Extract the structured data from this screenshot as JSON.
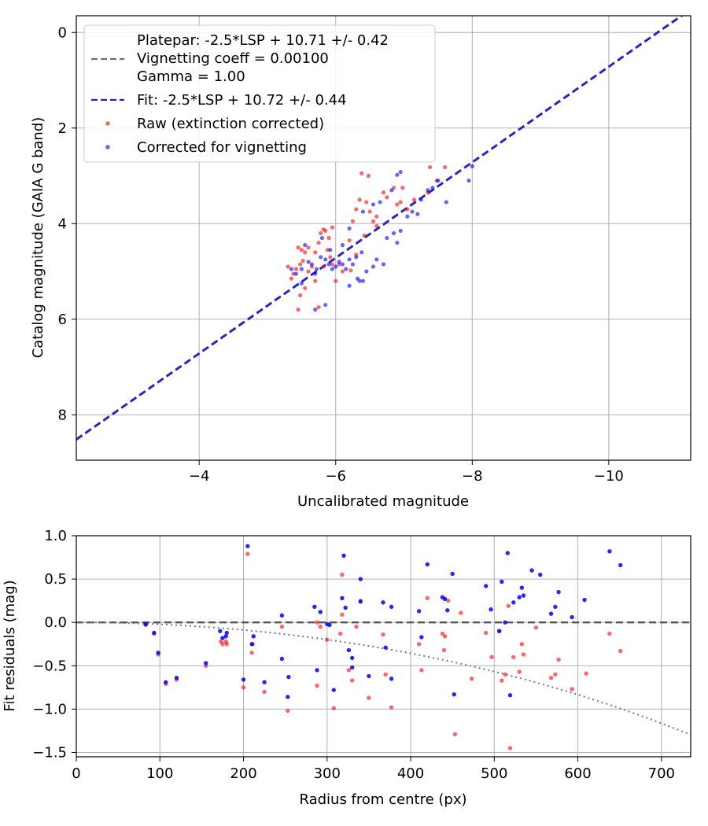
{
  "chart_data": [
    {
      "type": "scatter",
      "xlabel": "Uncalibrated magnitude",
      "ylabel": "Catalog magnitude (GAIA G band)",
      "xlim": [
        -2.2,
        -11.2
      ],
      "ylim": [
        -0.35,
        8.95
      ],
      "x_inverted": true,
      "y_inverted": true,
      "xticks": [
        -4,
        -6,
        -8,
        -10
      ],
      "xtick_labels": [
        "−4",
        "−6",
        "−8",
        "−10"
      ],
      "yticks": [
        0,
        2,
        4,
        6,
        8
      ],
      "ytick_labels": [
        "0",
        "2",
        "4",
        "6",
        "8"
      ],
      "grid": true,
      "legend_position": "top-left",
      "legend": {
        "platepar_label": "Platepar: -2.5*LSP + 10.71 +/- 0.42",
        "vignetting_label": "Vignetting coeff = 0.00100",
        "gamma_label": "Gamma = 1.00",
        "fit_label": "Fit: -2.5*LSP + 10.72 +/- 0.44",
        "raw_label": "Raw (extinction corrected)",
        "corrected_label": "Corrected for vignetting"
      },
      "colors": {
        "raw": "#ff0000",
        "corrected": "#0000ff",
        "fit": "#2222cc",
        "platepar": "#707070"
      },
      "fit_line": {
        "slope": 1.0,
        "intercept": 10.72
      },
      "platepar_line": {
        "slope": 1.0,
        "intercept": 10.71
      },
      "series": [
        {
          "key": "raw",
          "points": [
            [
              -5.45,
              4.5
            ],
            [
              -5.5,
              4.55
            ],
            [
              -5.55,
              4.6
            ],
            [
              -5.6,
              4.5
            ],
            [
              -5.52,
              4.78
            ],
            [
              -5.48,
              4.85
            ],
            [
              -5.42,
              4.95
            ],
            [
              -5.38,
              5.05
            ],
            [
              -5.6,
              5.0
            ],
            [
              -5.65,
              4.9
            ],
            [
              -5.7,
              4.6
            ],
            [
              -5.75,
              4.4
            ],
            [
              -5.78,
              4.2
            ],
            [
              -5.85,
              4.15
            ],
            [
              -5.9,
              4.3
            ],
            [
              -5.88,
              4.55
            ],
            [
              -5.92,
              4.7
            ],
            [
              -5.82,
              4.9
            ],
            [
              -5.95,
              4.85
            ],
            [
              -6.0,
              5.2
            ],
            [
              -5.7,
              5.2
            ],
            [
              -5.55,
              5.35
            ],
            [
              -5.48,
              5.5
            ],
            [
              -5.45,
              5.8
            ],
            [
              -5.75,
              5.75
            ],
            [
              -5.82,
              4.12
            ],
            [
              -5.95,
              4.08
            ],
            [
              -5.3,
              4.9
            ],
            [
              -5.35,
              5.15
            ],
            [
              -6.05,
              4.85
            ],
            [
              -6.1,
              5.0
            ],
            [
              -6.2,
              4.35
            ],
            [
              -6.25,
              3.95
            ],
            [
              -6.3,
              3.7
            ],
            [
              -6.35,
              3.5
            ],
            [
              -6.45,
              3.55
            ],
            [
              -6.5,
              3.75
            ],
            [
              -6.55,
              3.95
            ],
            [
              -6.6,
              4.05
            ],
            [
              -6.38,
              2.95
            ],
            [
              -6.48,
              3.0
            ],
            [
              -6.3,
              4.65
            ],
            [
              -6.42,
              4.25
            ],
            [
              -6.6,
              3.85
            ],
            [
              -6.7,
              3.35
            ],
            [
              -6.75,
              3.45
            ],
            [
              -6.85,
              3.25
            ],
            [
              -6.9,
              3.6
            ],
            [
              -6.95,
              3.55
            ],
            [
              -6.98,
              3.25
            ],
            [
              -7.05,
              3.7
            ],
            [
              -7.15,
              3.5
            ],
            [
              -7.35,
              3.35
            ],
            [
              -7.38,
              2.82
            ],
            [
              -7.48,
              3.1
            ],
            [
              -7.6,
              2.82
            ],
            [
              -6.22,
              4.98
            ]
          ]
        },
        {
          "key": "corrected",
          "points": [
            [
              -5.35,
              4.95
            ],
            [
              -5.42,
              5.05
            ],
            [
              -5.5,
              4.95
            ],
            [
              -5.6,
              4.8
            ],
            [
              -5.65,
              4.85
            ],
            [
              -5.72,
              4.95
            ],
            [
              -5.7,
              5.05
            ],
            [
              -5.78,
              4.7
            ],
            [
              -5.85,
              4.75
            ],
            [
              -5.9,
              4.85
            ],
            [
              -5.95,
              4.95
            ],
            [
              -6.0,
              4.9
            ],
            [
              -6.05,
              4.8
            ],
            [
              -6.1,
              4.85
            ],
            [
              -6.15,
              4.95
            ],
            [
              -6.2,
              4.75
            ],
            [
              -6.25,
              4.85
            ],
            [
              -6.3,
              4.7
            ],
            [
              -6.38,
              4.6
            ],
            [
              -6.32,
              5.15
            ],
            [
              -6.4,
              5.2
            ],
            [
              -6.45,
              5.0
            ],
            [
              -6.55,
              4.9
            ],
            [
              -6.6,
              4.75
            ],
            [
              -6.7,
              4.85
            ],
            [
              -6.75,
              4.3
            ],
            [
              -6.85,
              4.2
            ],
            [
              -6.9,
              4.4
            ],
            [
              -6.95,
              4.15
            ],
            [
              -7.05,
              3.85
            ],
            [
              -7.12,
              3.75
            ],
            [
              -7.2,
              3.8
            ],
            [
              -7.25,
              3.5
            ],
            [
              -7.35,
              3.3
            ],
            [
              -7.42,
              3.25
            ],
            [
              -7.5,
              3.1
            ],
            [
              -7.62,
              3.55
            ],
            [
              -7.95,
              3.1
            ],
            [
              -8.0,
              2.8
            ],
            [
              -6.9,
              2.98
            ],
            [
              -6.95,
              2.92
            ],
            [
              -6.82,
              3.3
            ],
            [
              -6.65,
              3.55
            ],
            [
              -6.55,
              3.6
            ],
            [
              -6.4,
              3.75
            ],
            [
              -6.2,
              4.1
            ],
            [
              -6.1,
              4.45
            ],
            [
              -5.92,
              4.55
            ],
            [
              -5.8,
              4.3
            ],
            [
              -5.55,
              4.45
            ],
            [
              -5.85,
              5.7
            ],
            [
              -5.7,
              5.8
            ],
            [
              -6.2,
              5.3
            ],
            [
              -6.35,
              5.2
            ],
            [
              -5.5,
              5.25
            ]
          ]
        }
      ]
    },
    {
      "type": "scatter",
      "xlabel": "Radius from centre (px)",
      "ylabel": "Fit residuals (mag)",
      "xlim": [
        0,
        735
      ],
      "ylim": [
        -1.55,
        1.0
      ],
      "xticks": [
        0,
        100,
        200,
        300,
        400,
        500,
        600,
        700
      ],
      "xtick_labels": [
        "0",
        "100",
        "200",
        "300",
        "400",
        "500",
        "600",
        "700"
      ],
      "yticks": [
        1.0,
        0.5,
        0.0,
        -0.5,
        -1.0,
        -1.5
      ],
      "ytick_labels": [
        "1.0",
        "0.5",
        "0.0",
        "−0.5",
        "−1.0",
        "−1.5"
      ],
      "grid": true,
      "colors": {
        "raw": "#ff0000",
        "corrected": "#0000ff",
        "zero_line": "#555555",
        "vignetting_curve": "#777777"
      },
      "zero_line_y": 0.0,
      "vignetting_coeff": 0.001,
      "series": [
        {
          "key": "raw",
          "points": [
            [
              83,
              -0.03
            ],
            [
              93,
              -0.13
            ],
            [
              98,
              -0.37
            ],
            [
              107,
              -0.71
            ],
            [
              120,
              -0.66
            ],
            [
              155,
              -0.5
            ],
            [
              173,
              -0.22
            ],
            [
              175,
              -0.25
            ],
            [
              179,
              -0.22
            ],
            [
              180,
              -0.25
            ],
            [
              200,
              -0.75
            ],
            [
              205,
              0.79
            ],
            [
              210,
              -0.35
            ],
            [
              211,
              -0.25
            ],
            [
              225,
              -0.8
            ],
            [
              246,
              -0.05
            ],
            [
              253,
              -1.02
            ],
            [
              288,
              -0.73
            ],
            [
              288,
              0.0
            ],
            [
              292,
              -0.05
            ],
            [
              300,
              -0.2
            ],
            [
              308,
              -0.99
            ],
            [
              316,
              -0.13
            ],
            [
              318,
              0.09
            ],
            [
              318,
              0.55
            ],
            [
              326,
              -0.55
            ],
            [
              330,
              -0.67
            ],
            [
              335,
              -0.05
            ],
            [
              340,
              0.25
            ],
            [
              350,
              -0.87
            ],
            [
              367,
              -0.14
            ],
            [
              370,
              -0.6
            ],
            [
              377,
              -0.98
            ],
            [
              410,
              -0.25
            ],
            [
              413,
              -0.55
            ],
            [
              420,
              0.28
            ],
            [
              438,
              -0.13
            ],
            [
              440,
              -0.32
            ],
            [
              441,
              -0.16
            ],
            [
              445,
              0.25
            ],
            [
              453,
              -1.29
            ],
            [
              460,
              0.11
            ],
            [
              473,
              -0.65
            ],
            [
              490,
              -0.12
            ],
            [
              497,
              -0.4
            ],
            [
              506,
              -0.1
            ],
            [
              509,
              -0.67
            ],
            [
              513,
              -0.6
            ],
            [
              517,
              0.19
            ],
            [
              519,
              -1.45
            ],
            [
              523,
              -0.4
            ],
            [
              530,
              -0.57
            ],
            [
              533,
              -0.25
            ],
            [
              535,
              -0.37
            ],
            [
              550,
              -0.06
            ],
            [
              568,
              -0.64
            ],
            [
              573,
              -0.6
            ],
            [
              577,
              -0.43
            ],
            [
              593,
              -0.77
            ],
            [
              610,
              -0.59
            ],
            [
              638,
              -0.13
            ],
            [
              651,
              -0.33
            ]
          ]
        },
        {
          "key": "corrected",
          "points": [
            [
              83,
              -0.02
            ],
            [
              93,
              -0.12
            ],
            [
              98,
              -0.35
            ],
            [
              107,
              -0.69
            ],
            [
              120,
              -0.64
            ],
            [
              155,
              -0.47
            ],
            [
              172,
              -0.1
            ],
            [
              175,
              -0.18
            ],
            [
              179,
              -0.16
            ],
            [
              180,
              -0.12
            ],
            [
              200,
              -0.66
            ],
            [
              205,
              0.88
            ],
            [
              210,
              -0.25
            ],
            [
              212,
              -0.16
            ],
            [
              225,
              -0.69
            ],
            [
              246,
              0.08
            ],
            [
              246,
              -0.42
            ],
            [
              253,
              -0.86
            ],
            [
              254,
              -0.63
            ],
            [
              285,
              0.18
            ],
            [
              288,
              -0.55
            ],
            [
              292,
              0.12
            ],
            [
              300,
              -0.02
            ],
            [
              303,
              -0.03
            ],
            [
              308,
              -0.78
            ],
            [
              318,
              0.28
            ],
            [
              320,
              0.77
            ],
            [
              322,
              0.17
            ],
            [
              326,
              -0.32
            ],
            [
              330,
              -0.41
            ],
            [
              330,
              -0.52
            ],
            [
              340,
              0.5
            ],
            [
              340,
              0.24
            ],
            [
              350,
              -0.62
            ],
            [
              367,
              0.23
            ],
            [
              370,
              -0.29
            ],
            [
              377,
              0.18
            ],
            [
              377,
              -0.65
            ],
            [
              410,
              0.13
            ],
            [
              413,
              -0.17
            ],
            [
              420,
              0.67
            ],
            [
              438,
              0.29
            ],
            [
              441,
              0.27
            ],
            [
              444,
              0.14
            ],
            [
              450,
              0.56
            ],
            [
              452,
              -0.83
            ],
            [
              490,
              0.42
            ],
            [
              496,
              0.15
            ],
            [
              506,
              -0.1
            ],
            [
              509,
              0.47
            ],
            [
              513,
              0.0
            ],
            [
              516,
              0.8
            ],
            [
              519,
              -0.84
            ],
            [
              523,
              0.23
            ],
            [
              530,
              0.29
            ],
            [
              533,
              0.4
            ],
            [
              535,
              0.31
            ],
            [
              545,
              0.6
            ],
            [
              555,
              0.55
            ],
            [
              568,
              0.1
            ],
            [
              573,
              0.18
            ],
            [
              577,
              0.35
            ],
            [
              593,
              0.06
            ],
            [
              608,
              0.26
            ],
            [
              638,
              0.82
            ],
            [
              651,
              0.66
            ]
          ]
        }
      ]
    }
  ]
}
